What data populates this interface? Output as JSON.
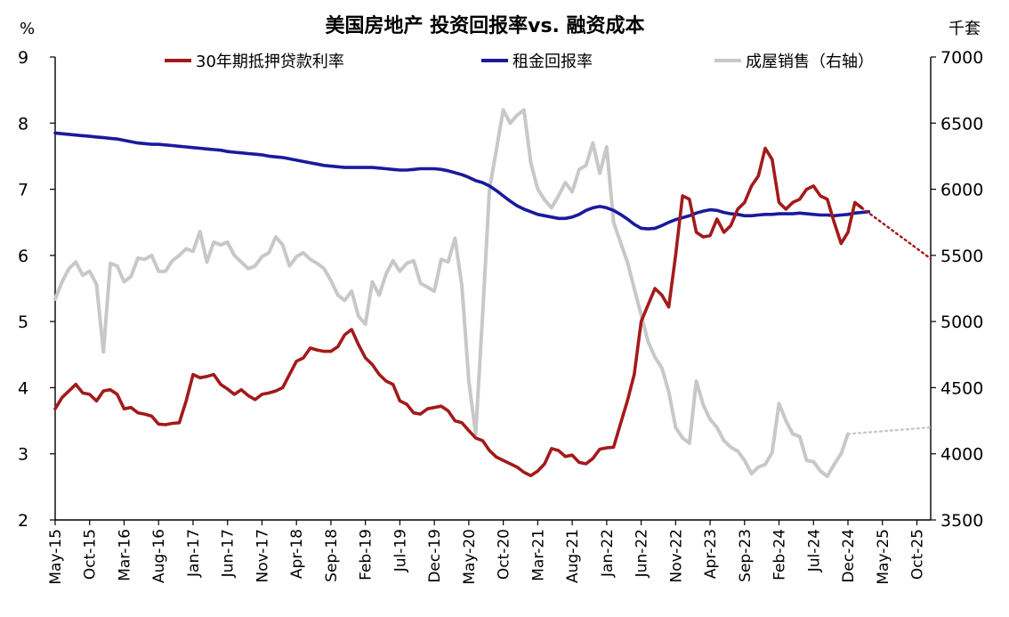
{
  "chart_data": {
    "type": "line",
    "title": "美国房地产 投资回报率vs. 融资成本",
    "y_left_unit": "%",
    "y_right_unit": "千套",
    "y_left": {
      "min": 2,
      "max": 9,
      "ticks": [
        "2",
        "3",
        "4",
        "5",
        "6",
        "7",
        "8",
        "9"
      ]
    },
    "y_right": {
      "min": 3500,
      "max": 7000,
      "ticks": [
        "3500",
        "4000",
        "4500",
        "5000",
        "5500",
        "6000",
        "6500",
        "7000"
      ]
    },
    "x_start": "2015-05",
    "x_end": "2025-12",
    "x_ticks": [
      "May-15",
      "Oct-15",
      "Mar-16",
      "Aug-16",
      "Jan-17",
      "Jun-17",
      "Nov-17",
      "Apr-18",
      "Sep-18",
      "Feb-19",
      "Jul-19",
      "Dec-19",
      "May-20",
      "Oct-20",
      "Mar-21",
      "Aug-21",
      "Jan-22",
      "Jun-22",
      "Nov-22",
      "Apr-23",
      "Sep-23",
      "Feb-24",
      "Jul-24",
      "Dec-24",
      "May-25",
      "Oct-25"
    ],
    "legend": [
      "30年期抵押贷款利率",
      "租金回报率",
      "成屋销售（右轴）"
    ],
    "colors": {
      "mortgage": "#a31a1a",
      "rent": "#1a1a9c",
      "sales": "#c8c8c8"
    },
    "series": [
      {
        "name": "30年期抵押贷款利率",
        "axis": "left",
        "start": "2015-05",
        "values": [
          3.68,
          3.85,
          3.95,
          4.05,
          3.92,
          3.9,
          3.8,
          3.95,
          3.97,
          3.9,
          3.68,
          3.7,
          3.62,
          3.6,
          3.57,
          3.45,
          3.44,
          3.46,
          3.47,
          3.8,
          4.2,
          4.15,
          4.17,
          4.2,
          4.05,
          3.98,
          3.9,
          3.97,
          3.88,
          3.82,
          3.9,
          3.92,
          3.95,
          4.0,
          4.2,
          4.4,
          4.45,
          4.6,
          4.57,
          4.55,
          4.55,
          4.62,
          4.8,
          4.88,
          4.65,
          4.45,
          4.35,
          4.2,
          4.1,
          4.05,
          3.8,
          3.75,
          3.62,
          3.6,
          3.68,
          3.7,
          3.72,
          3.65,
          3.5,
          3.47,
          3.35,
          3.24,
          3.2,
          3.05,
          2.95,
          2.9,
          2.85,
          2.8,
          2.72,
          2.67,
          2.74,
          2.85,
          3.08,
          3.05,
          2.96,
          2.98,
          2.87,
          2.85,
          2.93,
          3.07,
          3.09,
          3.1,
          3.45,
          3.8,
          4.2,
          5.0,
          5.25,
          5.5,
          5.4,
          5.22,
          6.0,
          6.9,
          6.85,
          6.35,
          6.28,
          6.3,
          6.55,
          6.35,
          6.45,
          6.7,
          6.8,
          7.05,
          7.2,
          7.62,
          7.45,
          6.8,
          6.7,
          6.8,
          6.85,
          7.0,
          7.05,
          6.9,
          6.85,
          6.5,
          6.18,
          6.35,
          6.8,
          6.72
        ],
        "forecast": {
          "end": "2025-12",
          "end_value": 5.95
        }
      },
      {
        "name": "租金回报率",
        "axis": "left",
        "start": "2015-05",
        "values": [
          7.85,
          7.84,
          7.83,
          7.82,
          7.81,
          7.8,
          7.79,
          7.78,
          7.77,
          7.76,
          7.74,
          7.72,
          7.7,
          7.69,
          7.68,
          7.68,
          7.67,
          7.66,
          7.65,
          7.64,
          7.63,
          7.62,
          7.61,
          7.6,
          7.59,
          7.57,
          7.56,
          7.55,
          7.54,
          7.53,
          7.52,
          7.5,
          7.49,
          7.48,
          7.46,
          7.44,
          7.42,
          7.4,
          7.38,
          7.36,
          7.35,
          7.34,
          7.33,
          7.33,
          7.33,
          7.33,
          7.33,
          7.32,
          7.31,
          7.3,
          7.29,
          7.29,
          7.3,
          7.31,
          7.31,
          7.31,
          7.3,
          7.28,
          7.25,
          7.22,
          7.18,
          7.13,
          7.1,
          7.05,
          6.98,
          6.9,
          6.82,
          6.75,
          6.7,
          6.66,
          6.62,
          6.6,
          6.58,
          6.56,
          6.56,
          6.58,
          6.62,
          6.68,
          6.72,
          6.74,
          6.72,
          6.68,
          6.62,
          6.55,
          6.47,
          6.41,
          6.4,
          6.41,
          6.45,
          6.5,
          6.54,
          6.57,
          6.6,
          6.64,
          6.67,
          6.69,
          6.68,
          6.65,
          6.63,
          6.62,
          6.6,
          6.6,
          6.61,
          6.62,
          6.62,
          6.63,
          6.63,
          6.63,
          6.64,
          6.63,
          6.62,
          6.61,
          6.61,
          6.6,
          6.61,
          6.62,
          6.64,
          6.65,
          6.66
        ]
      },
      {
        "name": "成屋销售（右轴）",
        "axis": "right",
        "start": "2015-05",
        "values": [
          5170,
          5300,
          5400,
          5450,
          5350,
          5380,
          5280,
          4770,
          5440,
          5420,
          5300,
          5340,
          5480,
          5470,
          5500,
          5380,
          5380,
          5460,
          5500,
          5550,
          5530,
          5680,
          5450,
          5600,
          5580,
          5600,
          5500,
          5450,
          5400,
          5420,
          5490,
          5520,
          5640,
          5580,
          5420,
          5490,
          5520,
          5470,
          5440,
          5400,
          5310,
          5200,
          5160,
          5230,
          5040,
          4980,
          5300,
          5200,
          5360,
          5460,
          5380,
          5440,
          5460,
          5290,
          5260,
          5230,
          5470,
          5450,
          5630,
          5270,
          4550,
          4150,
          5050,
          6000,
          6300,
          6600,
          6500,
          6560,
          6600,
          6200,
          6000,
          5920,
          5860,
          5950,
          6050,
          5980,
          6150,
          6180,
          6350,
          6120,
          6320,
          5750,
          5600,
          5450,
          5250,
          5050,
          4850,
          4730,
          4650,
          4470,
          4200,
          4120,
          4080,
          4550,
          4370,
          4260,
          4200,
          4100,
          4050,
          4020,
          3950,
          3850,
          3900,
          3920,
          4010,
          4380,
          4250,
          4150,
          4130,
          3950,
          3940,
          3870,
          3830,
          3920,
          4000,
          4150
        ],
        "forecast": {
          "end": "2025-12",
          "end_value": 4200
        }
      }
    ]
  }
}
